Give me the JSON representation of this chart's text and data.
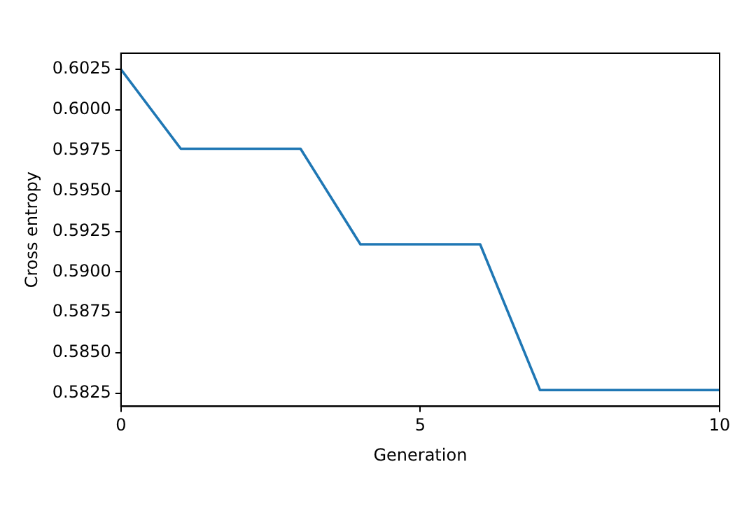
{
  "chart_data": {
    "type": "line",
    "xlabel": "Generation",
    "ylabel": "Cross entropy",
    "x": [
      0,
      1,
      3,
      4,
      6,
      7,
      10
    ],
    "series": [
      {
        "color": "#1f77b4",
        "values": [
          0.6025,
          0.5976,
          0.5976,
          0.5917,
          0.5917,
          0.5827,
          0.5827
        ]
      }
    ],
    "xlim": [
      0,
      10
    ],
    "xticks": [
      0,
      5,
      10
    ],
    "ylim": [
      0.5817,
      0.6035
    ],
    "yticks": [
      0.5825,
      {
        "value": 0.585,
        "label": "0.5850"
      },
      0.5875,
      {
        "value": 0.59,
        "label": "0.5900"
      },
      0.5925,
      {
        "value": 0.595,
        "label": "0.5950"
      },
      0.5975,
      {
        "value": 0.6,
        "label": "0.6000"
      },
      0.6025
    ],
    "grid": false,
    "legend": false,
    "marker": "none",
    "line_style": "solid"
  }
}
